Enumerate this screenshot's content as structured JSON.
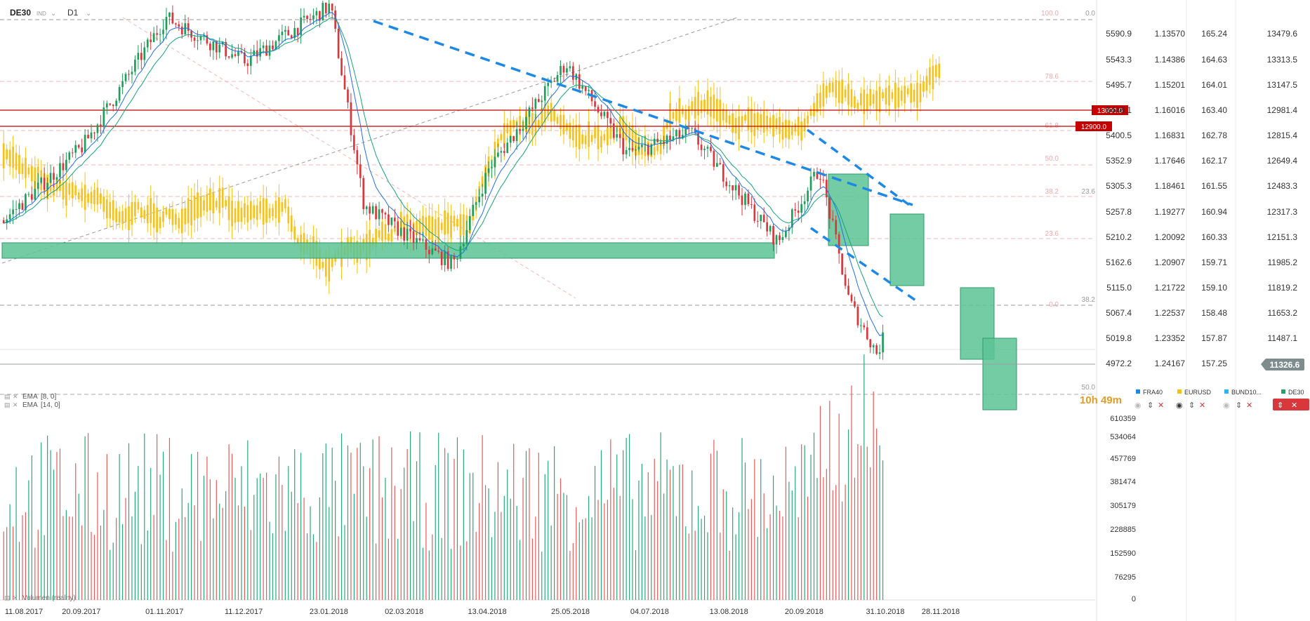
{
  "header": {
    "symbol": "DE30",
    "index_tag": "IND",
    "interval": "D1"
  },
  "indicators": [
    {
      "label": "EMA",
      "params": "[8, 0]"
    },
    {
      "label": "EMA",
      "params": "[14, 0]"
    }
  ],
  "volume_label": "Volumen (realny)",
  "countdown": {
    "hours": "10h",
    "minutes": "49m"
  },
  "price_panel": {
    "current_price": "11326.6",
    "current_price_color": "#7f8c8d",
    "horizontal_lines": [
      {
        "label": "13000.0",
        "color": "#c40000"
      },
      {
        "label": "12900.0",
        "color": "#c40000"
      }
    ]
  },
  "axes": {
    "columns": [
      {
        "name": "",
        "ticks": [
          "5590.9",
          "5543.3",
          "5495.7",
          "5448.1",
          "5400.5",
          "5352.9",
          "5305.3",
          "5257.8",
          "5210.2",
          "5162.6",
          "5115.0",
          "5067.4",
          "5019.8",
          "4972.2"
        ]
      },
      {
        "name": "",
        "ticks": [
          "1.13570",
          "1.14386",
          "1.15201",
          "1.16016",
          "1.16831",
          "1.17646",
          "1.18461",
          "1.19277",
          "1.20092",
          "1.20907",
          "1.21722",
          "1.22537",
          "1.23352",
          "1.24167"
        ]
      },
      {
        "name": "",
        "ticks": [
          "165.24",
          "164.63",
          "164.01",
          "163.40",
          "162.78",
          "162.17",
          "161.55",
          "160.94",
          "160.33",
          "159.71",
          "159.10",
          "158.48",
          "157.87",
          "157.25"
        ]
      },
      {
        "name": "",
        "ticks": [
          "13479.6",
          "13313.5",
          "13147.5",
          "12981.4",
          "12815.4",
          "12649.4",
          "12483.3",
          "12317.3",
          "12151.3",
          "11985.2",
          "11819.2",
          "11653.2",
          "11487.1"
        ]
      }
    ],
    "volume_ticks": [
      "610359",
      "534064",
      "457769",
      "381474",
      "305179",
      "228885",
      "152590",
      "76295",
      "0"
    ],
    "x_ticks": [
      "11.08.2017",
      "20.09.2017",
      "01.11.2017",
      "11.12.2017",
      "23.01.2018",
      "02.03.2018",
      "13.04.2018",
      "25.05.2018",
      "04.07.2018",
      "13.08.2018",
      "20.09.2018",
      "31.10.2018",
      "28.11.2018"
    ]
  },
  "fib_labels": {
    "upper": [
      "100.0",
      "78.6",
      "61.8",
      "50.0",
      "38.2",
      "23.6",
      "0.0"
    ],
    "right_side": [
      "0.0",
      "23.6",
      "38.2",
      "50.0"
    ]
  },
  "legend": [
    {
      "name": "FRA40",
      "color": "#1e88e5"
    },
    {
      "name": "EURUSD",
      "color": "#f4c20d"
    },
    {
      "name": "BUND10...",
      "color": "#29b6f6"
    },
    {
      "name": "DE30",
      "color": "#26a269"
    }
  ],
  "chart_data": {
    "type": "candlestick",
    "primary_series": "DE30",
    "timeframe": "D1",
    "x_range": [
      "2017-08-11",
      "2018-11-28"
    ],
    "y_range": [
      11250,
      13550
    ],
    "key_dates": [
      {
        "date": "2017-08-11",
        "close": 12100
      },
      {
        "date": "2017-09-20",
        "close": 12600
      },
      {
        "date": "2017-11-01",
        "close": 13470
      },
      {
        "date": "2017-12-11",
        "close": 13170
      },
      {
        "date": "2018-01-23",
        "close": 13550
      },
      {
        "date": "2018-02-09",
        "close": 12200
      },
      {
        "date": "2018-03-02",
        "close": 12000
      },
      {
        "date": "2018-03-26",
        "close": 11800
      },
      {
        "date": "2018-04-13",
        "close": 12450
      },
      {
        "date": "2018-05-22",
        "close": 13160
      },
      {
        "date": "2018-06-22",
        "close": 12550
      },
      {
        "date": "2018-07-24",
        "close": 12690
      },
      {
        "date": "2018-08-13",
        "close": 12350
      },
      {
        "date": "2018-09-06",
        "close": 11950
      },
      {
        "date": "2018-09-27",
        "close": 12450
      },
      {
        "date": "2018-10-12",
        "close": 11550
      },
      {
        "date": "2018-10-26",
        "close": 11200
      },
      {
        "date": "2018-10-30",
        "close": 11326.6
      }
    ],
    "ema_periods": [
      8,
      14
    ],
    "volume_range": [
      0,
      610359
    ],
    "grid": true,
    "legend_position": "bottom-right"
  }
}
